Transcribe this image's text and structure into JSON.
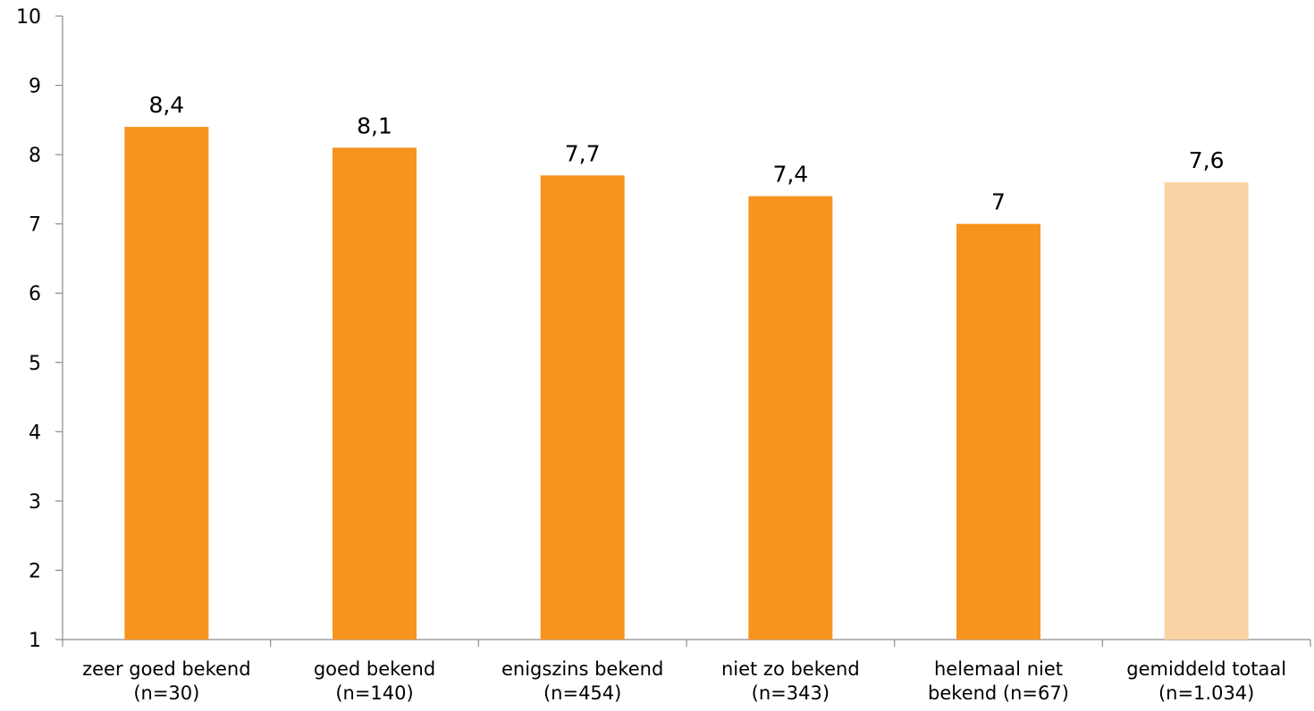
{
  "chart_data": {
    "type": "bar",
    "title": "",
    "xlabel": "",
    "ylabel": "",
    "ylim": [
      1,
      10
    ],
    "yticks": [
      "1",
      "2",
      "3",
      "4",
      "5",
      "6",
      "7",
      "8",
      "9",
      "10"
    ],
    "grid": false,
    "legend": "none",
    "categories": [
      [
        "zeer goed bekend",
        "(n=30)"
      ],
      [
        "goed bekend",
        "(n=140)"
      ],
      [
        "enigszins bekend",
        "(n=454)"
      ],
      [
        "niet zo bekend",
        "(n=343)"
      ],
      [
        "helemaal niet",
        "bekend (n=67)"
      ],
      [
        "gemiddeld totaal",
        "(n=1.034)"
      ]
    ],
    "values": [
      8.4,
      8.1,
      7.7,
      7.4,
      7.0,
      7.6
    ],
    "value_labels": [
      "8,4",
      "8,1",
      "7,7",
      "7,4",
      "7",
      "7,6"
    ],
    "colors": [
      "#f7941d",
      "#f7941d",
      "#f7941d",
      "#f7941d",
      "#f7941d",
      "#fad3a4"
    ]
  }
}
